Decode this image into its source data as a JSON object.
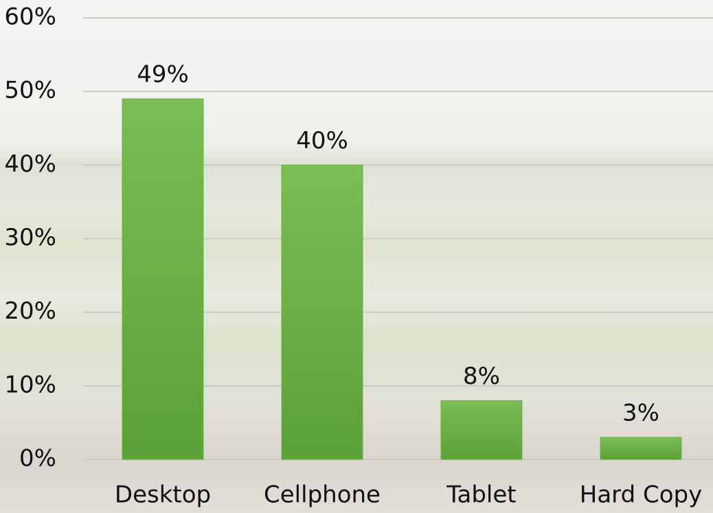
{
  "chart_data": {
    "type": "bar",
    "categories": [
      "Desktop",
      "Cellphone",
      "Tablet",
      "Hard Copy"
    ],
    "values": [
      49,
      40,
      8,
      3
    ],
    "value_labels": [
      "49%",
      "40%",
      "8%",
      "3%"
    ],
    "color": "#6cb046",
    "ylim": [
      0,
      60
    ],
    "yticks": [
      {
        "value": 0,
        "label": "0%"
      },
      {
        "value": 10,
        "label": "10%"
      },
      {
        "value": 20,
        "label": "20%"
      },
      {
        "value": 30,
        "label": "30%"
      },
      {
        "value": 40,
        "label": "40%"
      },
      {
        "value": 50,
        "label": "50%"
      },
      {
        "value": 60,
        "label": "60%"
      }
    ],
    "grid": true
  }
}
